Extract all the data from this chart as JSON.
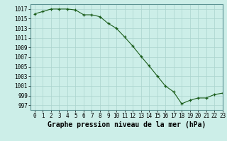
{
  "x": [
    0,
    1,
    2,
    3,
    4,
    5,
    6,
    7,
    8,
    9,
    10,
    11,
    12,
    13,
    14,
    15,
    16,
    17,
    18,
    19,
    20,
    21,
    22,
    23
  ],
  "y": [
    1016.0,
    1016.5,
    1017.0,
    1017.0,
    1017.0,
    1016.8,
    1015.8,
    1015.8,
    1015.4,
    1014.0,
    1013.0,
    1011.2,
    1009.3,
    1007.2,
    1005.2,
    1003.1,
    1001.0,
    999.8,
    997.3,
    998.0,
    998.5,
    998.5,
    999.2,
    999.5
  ],
  "background_color": "#cceee8",
  "grid_color": "#aad4ce",
  "line_color": "#1a5c1a",
  "marker_color": "#1a5c1a",
  "xlabel": "Graphe pression niveau de la mer (hPa)",
  "ylim": [
    996,
    1018
  ],
  "xlim": [
    -0.5,
    23
  ],
  "yticks": [
    997,
    999,
    1001,
    1003,
    1005,
    1007,
    1009,
    1011,
    1013,
    1015,
    1017
  ],
  "xticks": [
    0,
    1,
    2,
    3,
    4,
    5,
    6,
    7,
    8,
    9,
    10,
    11,
    12,
    13,
    14,
    15,
    16,
    17,
    18,
    19,
    20,
    21,
    22,
    23
  ],
  "tick_fontsize": 5.5,
  "xlabel_fontsize": 7.0,
  "spine_color": "#5a9090"
}
